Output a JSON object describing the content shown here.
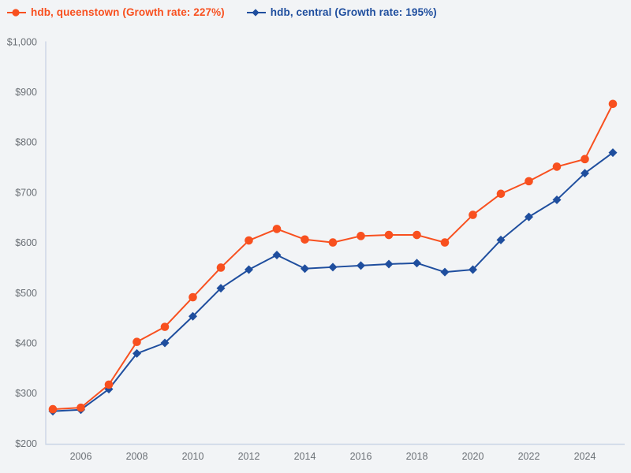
{
  "legend": {
    "items": [
      {
        "label": "hdb, queenstown (Growth rate: 227%)",
        "color": "#f8501f",
        "marker": "circle"
      },
      {
        "label": "hdb, central (Growth rate: 195%)",
        "color": "#1f4e9e",
        "marker": "diamond"
      }
    ]
  },
  "chart_data": {
    "type": "line",
    "x": [
      2005,
      2006,
      2007,
      2008,
      2009,
      2010,
      2011,
      2012,
      2013,
      2014,
      2015,
      2016,
      2017,
      2018,
      2019,
      2020,
      2021,
      2022,
      2023,
      2024,
      2025
    ],
    "series": [
      {
        "name": "hdb, queenstown",
        "growth_rate": "227%",
        "color": "#f8501f",
        "marker": "circle",
        "values": [
          268,
          271,
          317,
          402,
          432,
          491,
          550,
          604,
          627,
          606,
          600,
          613,
          615,
          615,
          600,
          655,
          697,
          722,
          751,
          766,
          876
        ]
      },
      {
        "name": "hdb, central",
        "growth_rate": "195%",
        "color": "#1f4e9e",
        "marker": "diamond",
        "values": [
          264,
          267,
          308,
          379,
          400,
          453,
          509,
          546,
          575,
          548,
          551,
          554,
          557,
          559,
          541,
          546,
          605,
          651,
          685,
          738,
          779
        ]
      }
    ],
    "ylim": [
      200,
      1000
    ],
    "ytick_values": [
      200,
      300,
      400,
      500,
      600,
      700,
      800,
      900,
      1000
    ],
    "ytick_labels": [
      "$200",
      "$300",
      "$400",
      "$500",
      "$600",
      "$700",
      "$800",
      "$900",
      "$1,000"
    ],
    "xtick_values": [
      2006,
      2008,
      2010,
      2012,
      2014,
      2016,
      2018,
      2020,
      2022,
      2024
    ],
    "xtick_labels": [
      "2006",
      "2008",
      "2010",
      "2012",
      "2014",
      "2016",
      "2018",
      "2020",
      "2022",
      "2024"
    ],
    "grid": false,
    "legend_position": "top-left",
    "background_color": "#f2f4f6",
    "axis_color": "#ccd6e6",
    "tick_label_color": "#6b7076"
  }
}
